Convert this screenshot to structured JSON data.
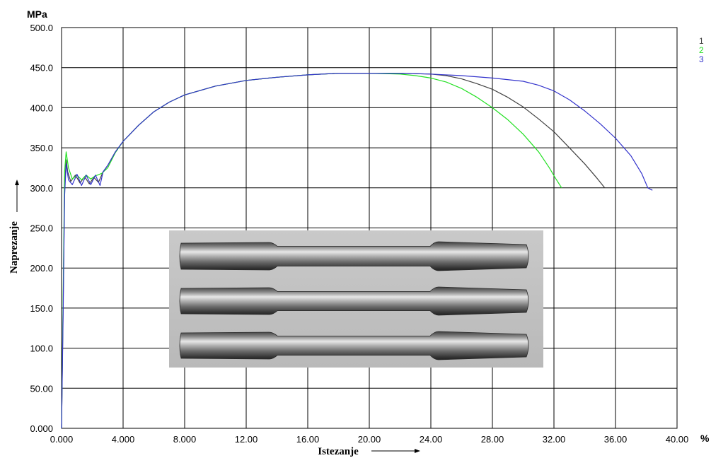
{
  "chart_data": {
    "type": "line",
    "xlabel": "Istezanje",
    "ylabel": "Naprezanje",
    "x_unit": "%",
    "y_unit": "MPa",
    "xlim": [
      0,
      40
    ],
    "ylim": [
      0,
      500
    ],
    "x_ticks": [
      "0.000",
      "4.000",
      "8.000",
      "12.00",
      "16.00",
      "20.00",
      "24.00",
      "28.00",
      "32.00",
      "36.00",
      "40.00"
    ],
    "y_ticks": [
      "0.000",
      "50.00",
      "100.0",
      "150.0",
      "200.0",
      "250.0",
      "300.0",
      "350.0",
      "400.0",
      "450.0",
      "500.0"
    ],
    "grid": true,
    "legend_position": "top-right",
    "series": [
      {
        "name": "1",
        "color": "#404040",
        "points": [
          [
            0,
            0
          ],
          [
            0.1,
            150
          ],
          [
            0.2,
            300
          ],
          [
            0.3,
            335
          ],
          [
            0.4,
            320
          ],
          [
            0.6,
            308
          ],
          [
            0.9,
            316
          ],
          [
            1.2,
            306
          ],
          [
            1.5,
            314
          ],
          [
            1.8,
            305
          ],
          [
            2.1,
            313
          ],
          [
            2.4,
            307
          ],
          [
            2.7,
            320
          ],
          [
            3.0,
            328
          ],
          [
            3.5,
            345
          ],
          [
            4.0,
            358
          ],
          [
            5.0,
            378
          ],
          [
            6.0,
            395
          ],
          [
            7.0,
            407
          ],
          [
            8.0,
            416
          ],
          [
            10.0,
            427
          ],
          [
            12.0,
            434
          ],
          [
            14.0,
            438
          ],
          [
            16.0,
            441
          ],
          [
            18.0,
            443
          ],
          [
            20.0,
            443
          ],
          [
            22.0,
            443
          ],
          [
            24.0,
            442
          ],
          [
            25.0,
            440
          ],
          [
            26.0,
            436
          ],
          [
            27.0,
            430
          ],
          [
            28.0,
            423
          ],
          [
            29.0,
            413
          ],
          [
            30.0,
            401
          ],
          [
            31.0,
            386
          ],
          [
            32.0,
            370
          ],
          [
            33.0,
            350
          ],
          [
            34.0,
            330
          ],
          [
            34.8,
            312
          ],
          [
            35.3,
            300
          ]
        ]
      },
      {
        "name": "2",
        "color": "#22e022",
        "points": [
          [
            0,
            0
          ],
          [
            0.1,
            160
          ],
          [
            0.2,
            320
          ],
          [
            0.3,
            345
          ],
          [
            0.45,
            325
          ],
          [
            0.7,
            311
          ],
          [
            1.0,
            316
          ],
          [
            1.3,
            310
          ],
          [
            1.6,
            316
          ],
          [
            1.9,
            311
          ],
          [
            2.2,
            315
          ],
          [
            2.6,
            318
          ],
          [
            3.0,
            325
          ],
          [
            3.5,
            344
          ],
          [
            4.0,
            358
          ],
          [
            5.0,
            378
          ],
          [
            6.0,
            395
          ],
          [
            7.0,
            407
          ],
          [
            8.0,
            416
          ],
          [
            10.0,
            427
          ],
          [
            12.0,
            434
          ],
          [
            14.0,
            438
          ],
          [
            16.0,
            441
          ],
          [
            18.0,
            443
          ],
          [
            20.0,
            443
          ],
          [
            22.0,
            442
          ],
          [
            23.0,
            440
          ],
          [
            24.0,
            437
          ],
          [
            25.0,
            432
          ],
          [
            26.0,
            424
          ],
          [
            27.0,
            413
          ],
          [
            28.0,
            400
          ],
          [
            29.0,
            385
          ],
          [
            30.0,
            367
          ],
          [
            31.0,
            345
          ],
          [
            31.7,
            325
          ],
          [
            32.1,
            312
          ],
          [
            32.5,
            300
          ]
        ]
      },
      {
        "name": "3",
        "color": "#3333cc",
        "points": [
          [
            0,
            0
          ],
          [
            0.1,
            140
          ],
          [
            0.2,
            290
          ],
          [
            0.3,
            330
          ],
          [
            0.45,
            310
          ],
          [
            0.7,
            304
          ],
          [
            1.0,
            317
          ],
          [
            1.3,
            303
          ],
          [
            1.6,
            316
          ],
          [
            1.9,
            304
          ],
          [
            2.2,
            316
          ],
          [
            2.5,
            303
          ],
          [
            2.7,
            320
          ],
          [
            3.0,
            328
          ],
          [
            3.5,
            345
          ],
          [
            4.0,
            358
          ],
          [
            5.0,
            378
          ],
          [
            6.0,
            395
          ],
          [
            7.0,
            407
          ],
          [
            8.0,
            416
          ],
          [
            10.0,
            427
          ],
          [
            12.0,
            434
          ],
          [
            14.0,
            438
          ],
          [
            16.0,
            441
          ],
          [
            18.0,
            443
          ],
          [
            20.0,
            443
          ],
          [
            22.0,
            443
          ],
          [
            24.0,
            442
          ],
          [
            26.0,
            440
          ],
          [
            28.0,
            437
          ],
          [
            30.0,
            433
          ],
          [
            31.0,
            428
          ],
          [
            32.0,
            421
          ],
          [
            33.0,
            410
          ],
          [
            34.0,
            396
          ],
          [
            35.0,
            380
          ],
          [
            36.0,
            362
          ],
          [
            37.0,
            340
          ],
          [
            37.7,
            318
          ],
          [
            38.1,
            300
          ],
          [
            38.4,
            297
          ]
        ]
      }
    ]
  },
  "photo": {
    "subject": "three-machined-tensile-specimens"
  }
}
